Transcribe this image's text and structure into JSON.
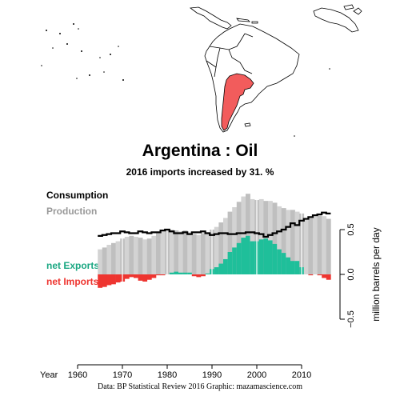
{
  "title": "Argentina :  Oil",
  "subtitle": "2016 imports increased by 31. %",
  "legend": {
    "consumption": "Consumption",
    "production": "Production",
    "net_exports": "net Exports",
    "net_imports": "net Imports"
  },
  "credit": "Data: BP Statistical Review 2016    Graphic: mazamascience.com",
  "colors": {
    "consumption": "#000000",
    "production": "#bfbfbf",
    "production_highlight": "#d3d3d3",
    "net_exports": "#1fbf9a",
    "net_imports": "#ee3530",
    "highlighted_country": "#f25c5c"
  },
  "map": {
    "highlighted_country": "Argentina"
  },
  "chart_data": {
    "type": "bar",
    "x_label": "Year",
    "y_label": "million barrels per day",
    "x_ticks": [
      1960,
      1970,
      1980,
      1990,
      2000,
      2010
    ],
    "y_ticks": [
      -0.5,
      0.0,
      0.5
    ],
    "y_tick_labels": [
      "−0.5",
      "0.0",
      "0.5"
    ],
    "xlim": [
      1958,
      2018
    ],
    "ylim": [
      -0.5,
      0.9
    ],
    "grid_years": [
      1970,
      1980,
      1990,
      2000,
      2010
    ],
    "years": [
      1965,
      1966,
      1967,
      1968,
      1969,
      1970,
      1971,
      1972,
      1973,
      1974,
      1975,
      1976,
      1977,
      1978,
      1979,
      1980,
      1981,
      1982,
      1983,
      1984,
      1985,
      1986,
      1987,
      1988,
      1989,
      1990,
      1991,
      1992,
      1993,
      1994,
      1995,
      1996,
      1997,
      1998,
      1999,
      2000,
      2001,
      2002,
      2003,
      2004,
      2005,
      2006,
      2007,
      2008,
      2009,
      2010,
      2011,
      2012,
      2013,
      2014,
      2015,
      2016
    ],
    "series": [
      {
        "name": "Production",
        "values": [
          0.28,
          0.3,
          0.33,
          0.35,
          0.37,
          0.4,
          0.42,
          0.43,
          0.42,
          0.41,
          0.39,
          0.4,
          0.43,
          0.46,
          0.48,
          0.5,
          0.5,
          0.49,
          0.48,
          0.49,
          0.47,
          0.45,
          0.44,
          0.46,
          0.47,
          0.5,
          0.53,
          0.58,
          0.63,
          0.7,
          0.75,
          0.81,
          0.87,
          0.9,
          0.84,
          0.83,
          0.84,
          0.82,
          0.82,
          0.8,
          0.76,
          0.74,
          0.72,
          0.72,
          0.7,
          0.68,
          0.62,
          0.63,
          0.66,
          0.66,
          0.65,
          0.62
        ]
      },
      {
        "name": "Consumption",
        "values": [
          0.43,
          0.44,
          0.45,
          0.46,
          0.46,
          0.48,
          0.47,
          0.46,
          0.46,
          0.48,
          0.47,
          0.46,
          0.47,
          0.47,
          0.49,
          0.5,
          0.48,
          0.46,
          0.46,
          0.47,
          0.45,
          0.47,
          0.47,
          0.48,
          0.46,
          0.44,
          0.45,
          0.46,
          0.46,
          0.45,
          0.45,
          0.46,
          0.46,
          0.47,
          0.47,
          0.46,
          0.45,
          0.42,
          0.44,
          0.46,
          0.48,
          0.5,
          0.53,
          0.57,
          0.55,
          0.6,
          0.62,
          0.64,
          0.66,
          0.67,
          0.69,
          0.68
        ]
      }
    ]
  }
}
